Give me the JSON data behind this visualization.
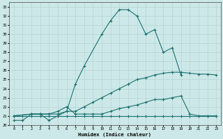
{
  "xlabel": "Humidex (Indice chaleur)",
  "bg_color": "#cde8e8",
  "line_color": "#1a7070",
  "grid_color": "#aed0d0",
  "ylim": [
    20,
    33.5
  ],
  "xlim": [
    -0.5,
    23.5
  ],
  "yticks": [
    20,
    21,
    22,
    23,
    24,
    25,
    26,
    27,
    28,
    29,
    30,
    31,
    32,
    33
  ],
  "xticks": [
    0,
    1,
    2,
    3,
    4,
    5,
    6,
    7,
    8,
    9,
    10,
    11,
    12,
    13,
    14,
    15,
    16,
    17,
    18,
    19,
    20,
    21,
    22,
    23
  ],
  "line1_x": [
    0,
    1,
    2,
    3,
    4,
    5,
    6,
    7,
    8,
    10,
    11,
    12,
    13,
    14,
    15,
    16,
    17,
    18,
    19
  ],
  "line1_y": [
    20.5,
    20.5,
    21.2,
    21.2,
    20.5,
    21.0,
    21.5,
    24.5,
    26.5,
    30.0,
    31.5,
    32.7,
    32.7,
    32.0,
    30.0,
    30.5,
    28.0,
    28.5,
    25.5
  ],
  "line2_x": [
    0,
    2,
    3,
    4,
    5,
    6,
    7,
    8,
    9,
    10,
    11,
    12,
    13,
    14,
    15,
    16,
    17,
    18,
    19,
    20,
    21,
    22,
    23
  ],
  "line2_y": [
    21.0,
    21.2,
    21.2,
    21.2,
    21.2,
    21.5,
    21.5,
    22.0,
    22.5,
    23.0,
    23.5,
    24.0,
    24.5,
    25.0,
    25.2,
    25.5,
    25.7,
    25.8,
    25.8,
    25.7,
    25.6,
    25.6,
    25.5
  ],
  "line3_x": [
    0,
    2,
    3,
    4,
    5,
    6,
    7,
    8,
    9,
    10,
    11,
    12,
    13,
    14,
    15,
    16,
    17,
    18,
    19,
    20,
    21,
    22,
    23
  ],
  "line3_y": [
    21.0,
    21.2,
    21.2,
    21.2,
    21.5,
    22.0,
    21.2,
    21.2,
    21.2,
    21.2,
    21.5,
    21.8,
    22.0,
    22.2,
    22.5,
    22.8,
    22.8,
    23.0,
    23.2,
    21.2,
    21.0,
    21.0,
    21.0
  ],
  "line4_x": [
    0,
    1,
    2,
    3,
    4,
    5,
    6,
    7,
    8,
    9,
    10,
    11,
    12,
    13,
    14,
    15,
    16,
    17,
    18,
    19,
    20,
    21,
    22,
    23
  ],
  "line4_y": [
    21.0,
    21.0,
    21.0,
    21.0,
    21.0,
    21.0,
    21.0,
    21.0,
    21.0,
    21.0,
    21.0,
    21.0,
    21.0,
    21.0,
    21.0,
    21.0,
    21.0,
    21.0,
    21.0,
    21.0,
    21.0,
    21.0,
    21.0,
    21.0
  ],
  "figsize": [
    3.2,
    2.0
  ],
  "dpi": 100
}
